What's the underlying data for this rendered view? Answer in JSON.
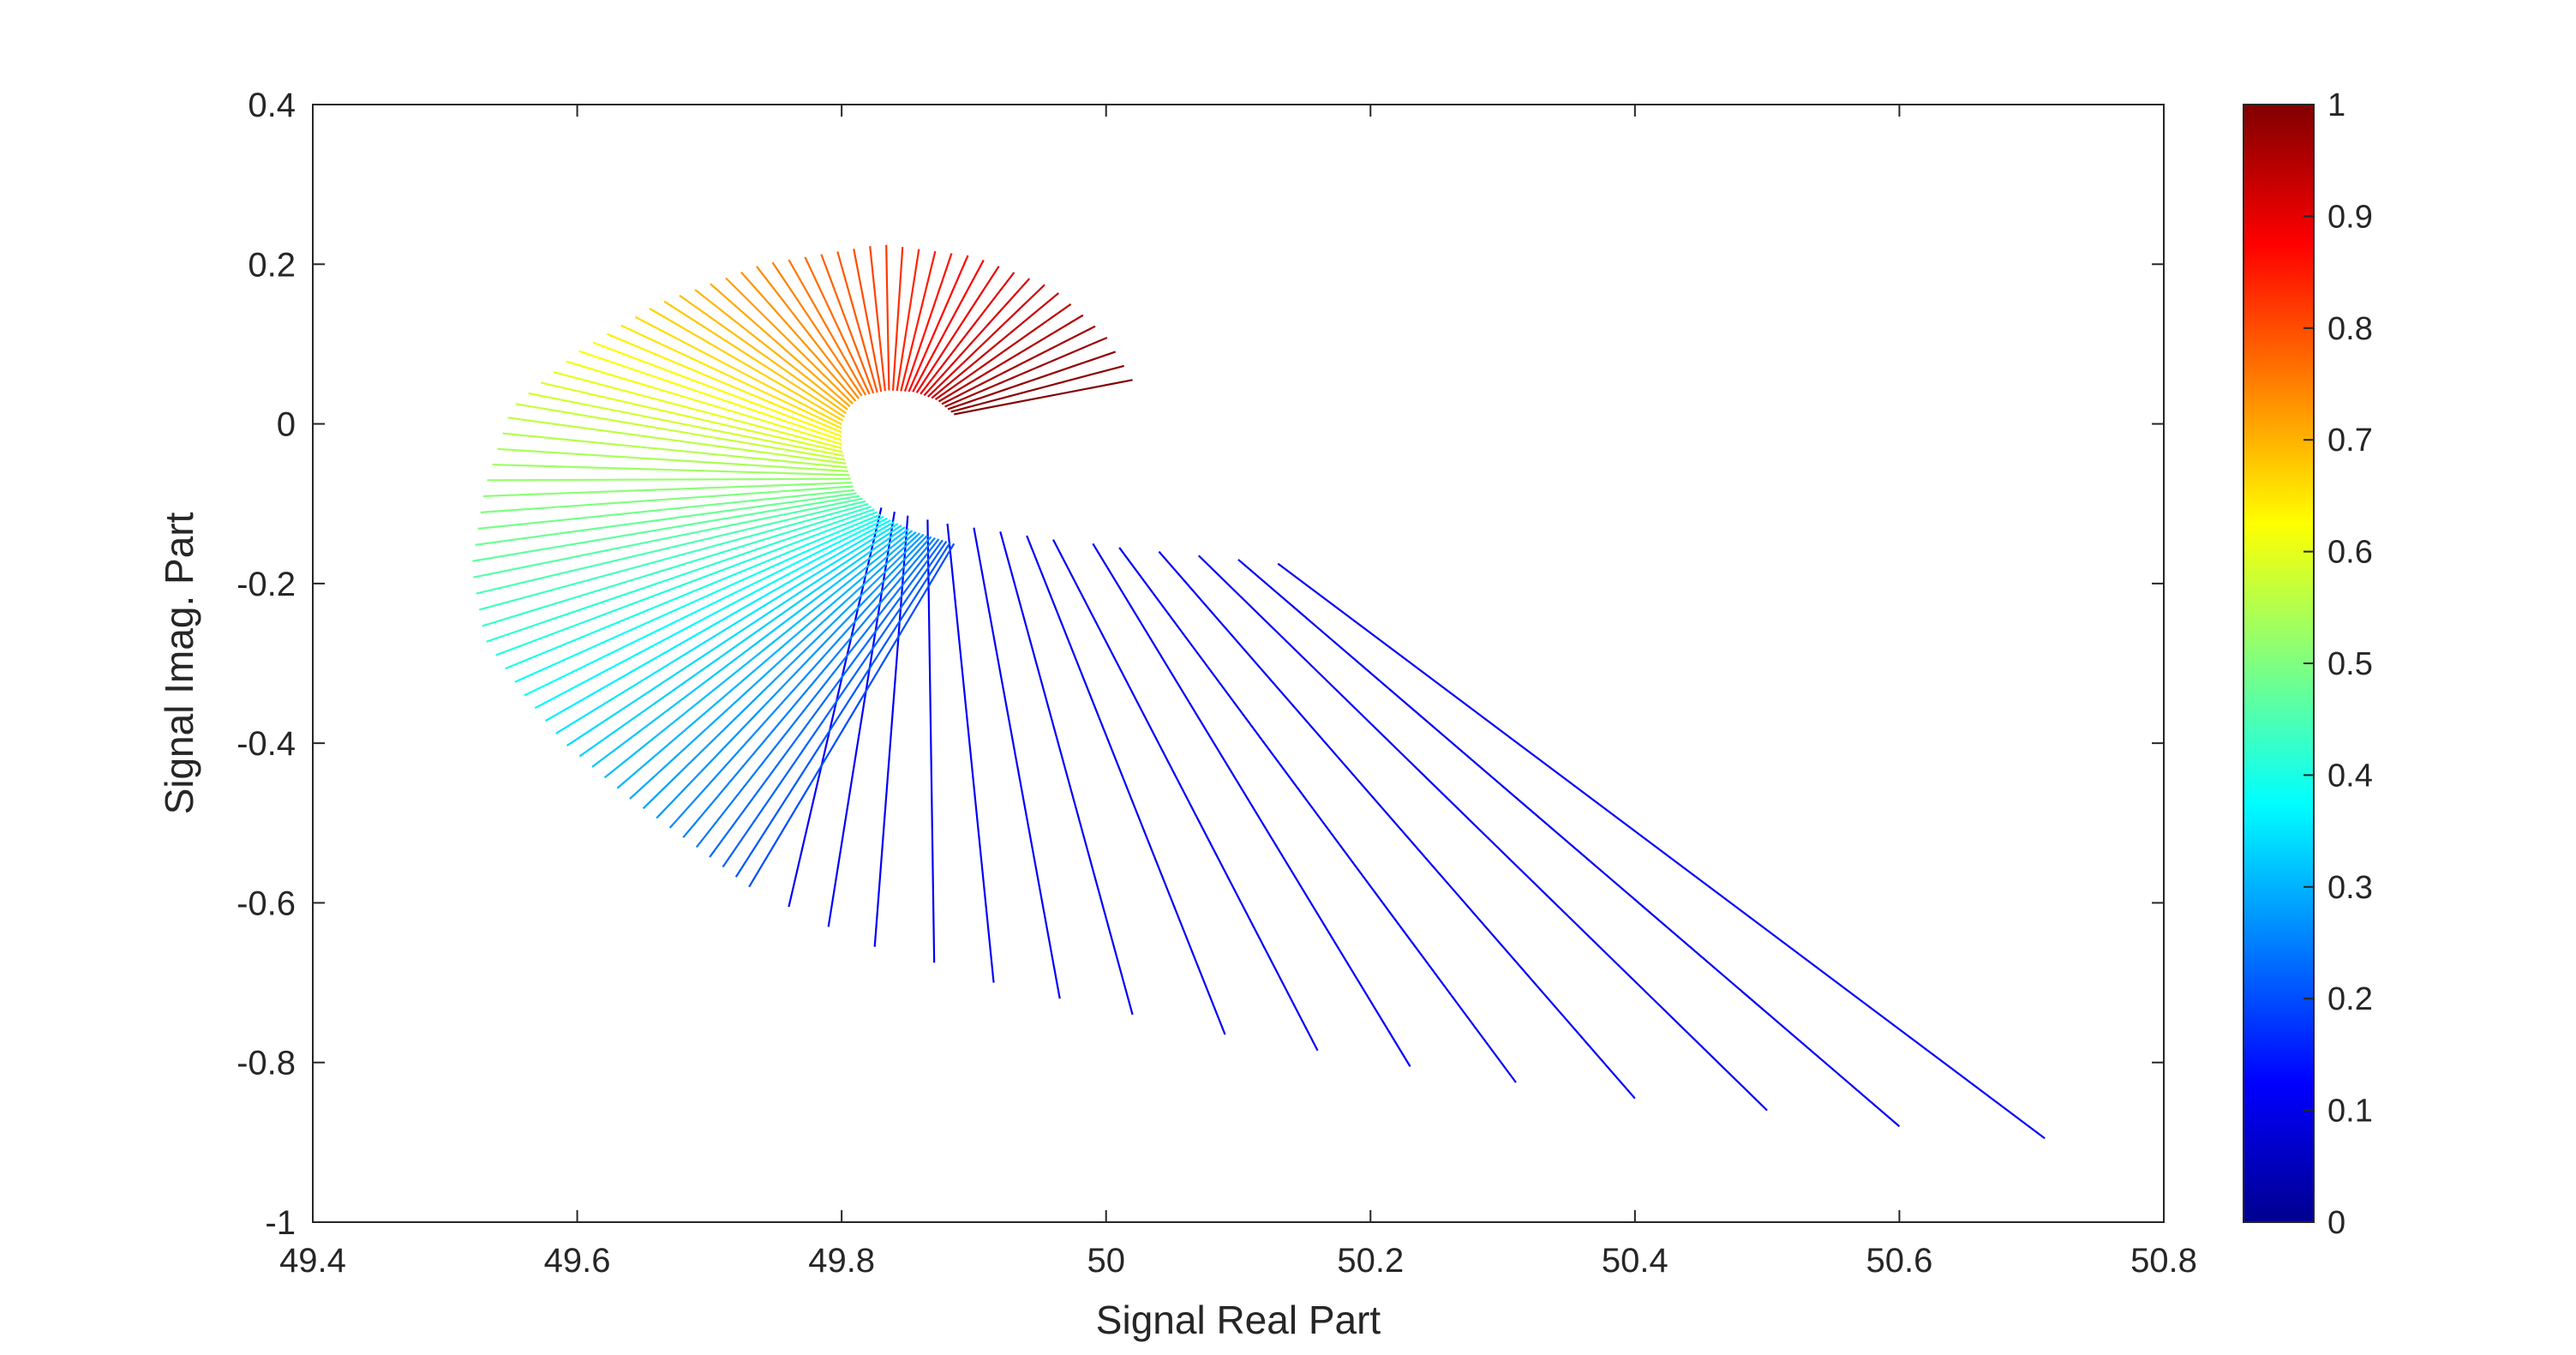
{
  "chart_data": {
    "type": "line",
    "title": "",
    "xlabel": "Signal Real Part",
    "ylabel": "Signal Imag. Part",
    "xlim": [
      49.4,
      50.8
    ],
    "ylim": [
      -1,
      0.4
    ],
    "xtick_labels": [
      "49.4",
      "49.6",
      "49.8",
      "50",
      "50.2",
      "50.4",
      "50.6",
      "50.8"
    ],
    "ytick_labels": [
      "0.4",
      "0.2",
      "0",
      "-0.2",
      "-0.4",
      "-0.6",
      "-0.8",
      "-1"
    ],
    "grid": false,
    "segment_count": 96,
    "inner_curve": {
      "description": "inner endpoints of the colored segments (fan hub)",
      "x": [
        49.885,
        49.872,
        49.855,
        49.835,
        49.815,
        49.805,
        49.8,
        49.8,
        49.805,
        49.81,
        49.83,
        49.855,
        49.885
      ],
      "y": [
        0.012,
        0.03,
        0.04,
        0.042,
        0.035,
        0.02,
        0.0,
        -0.03,
        -0.06,
        -0.085,
        -0.115,
        -0.135,
        -0.15
      ]
    },
    "segment_groups": [
      {
        "name": "blue lower segments (colorbar value ~0.1)",
        "color_value": 0.12,
        "segments": [
          {
            "x0": 50.13,
            "y0": -0.175,
            "x1": 50.71,
            "y1": -0.895
          },
          {
            "x0": 50.1,
            "y0": -0.17,
            "x1": 50.6,
            "y1": -0.88
          },
          {
            "x0": 50.07,
            "y0": -0.165,
            "x1": 50.5,
            "y1": -0.86
          },
          {
            "x0": 50.04,
            "y0": -0.16,
            "x1": 50.4,
            "y1": -0.845
          },
          {
            "x0": 50.01,
            "y0": -0.155,
            "x1": 50.31,
            "y1": -0.825
          },
          {
            "x0": 49.99,
            "y0": -0.15,
            "x1": 50.23,
            "y1": -0.805
          },
          {
            "x0": 49.96,
            "y0": -0.145,
            "x1": 50.16,
            "y1": -0.785
          },
          {
            "x0": 49.94,
            "y0": -0.14,
            "x1": 50.09,
            "y1": -0.765
          },
          {
            "x0": 49.92,
            "y0": -0.135,
            "x1": 50.02,
            "y1": -0.74
          },
          {
            "x0": 49.9,
            "y0": -0.13,
            "x1": 49.965,
            "y1": -0.72
          },
          {
            "x0": 49.88,
            "y0": -0.125,
            "x1": 49.915,
            "y1": -0.7
          },
          {
            "x0": 49.865,
            "y0": -0.12,
            "x1": 49.87,
            "y1": -0.675
          },
          {
            "x0": 49.85,
            "y0": -0.115,
            "x1": 49.825,
            "y1": -0.655
          },
          {
            "x0": 49.84,
            "y0": -0.11,
            "x1": 49.79,
            "y1": -0.63
          },
          {
            "x0": 49.83,
            "y0": -0.105,
            "x1": 49.76,
            "y1": -0.605
          }
        ]
      },
      {
        "name": "fan segments continuing the spiral (hue sweeps 0.2 to 1)",
        "color_range": [
          0.2,
          1.0
        ],
        "outer_curve": {
          "x": [
            49.73,
            49.69,
            49.64,
            49.59,
            49.56,
            49.53,
            49.52,
            49.53,
            49.55,
            49.6,
            49.66,
            49.74,
            49.83,
            49.9,
            49.96,
            50.0,
            50.02
          ],
          "y": [
            -0.58,
            -0.53,
            -0.47,
            -0.4,
            -0.34,
            -0.27,
            -0.18,
            -0.08,
            0.02,
            0.09,
            0.15,
            0.2,
            0.225,
            0.21,
            0.17,
            0.11,
            0.055
          ]
        }
      }
    ],
    "colorbar": {
      "colormap": "jet",
      "range": [
        0,
        1
      ],
      "tick_labels": [
        "0",
        "0.1",
        "0.2",
        "0.3",
        "0.4",
        "0.5",
        "0.6",
        "0.7",
        "0.8",
        "0.9",
        "1"
      ]
    }
  }
}
